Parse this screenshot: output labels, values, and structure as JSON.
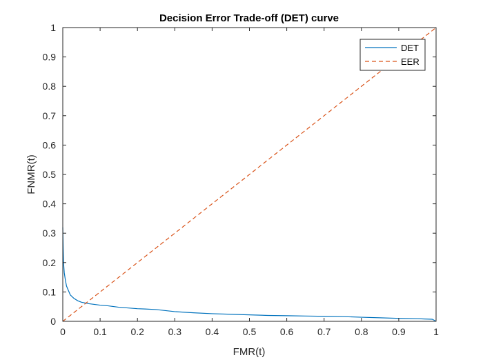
{
  "chart_data": {
    "type": "line",
    "title": "Decision Error Trade-off (DET) curve",
    "xlabel": "FMR(t)",
    "ylabel": "FNMR(t)",
    "xlim": [
      0,
      1
    ],
    "ylim": [
      0,
      1
    ],
    "xticks": [
      "0",
      "0.1",
      "0.2",
      "0.3",
      "0.4",
      "0.5",
      "0.6",
      "0.7",
      "0.8",
      "0.9",
      "1"
    ],
    "yticks": [
      "0",
      "0.1",
      "0.2",
      "0.3",
      "0.4",
      "0.5",
      "0.6",
      "0.7",
      "0.8",
      "0.9",
      "1"
    ],
    "grid": false,
    "legend_position": "top-right",
    "series": [
      {
        "name": "DET",
        "color": "#0072BD",
        "style": "solid",
        "x": [
          0,
          0.001,
          0.002,
          0.004,
          0.007,
          0.01,
          0.015,
          0.02,
          0.03,
          0.04,
          0.05,
          0.07,
          0.1,
          0.12,
          0.15,
          0.2,
          0.22,
          0.25,
          0.3,
          0.35,
          0.4,
          0.45,
          0.5,
          0.55,
          0.6,
          0.65,
          0.7,
          0.75,
          0.8,
          0.85,
          0.9,
          0.95,
          0.97,
          0.99,
          1.0
        ],
        "y": [
          0.32,
          0.25,
          0.2,
          0.165,
          0.14,
          0.12,
          0.105,
          0.09,
          0.078,
          0.07,
          0.065,
          0.06,
          0.055,
          0.053,
          0.048,
          0.043,
          0.042,
          0.04,
          0.033,
          0.029,
          0.026,
          0.024,
          0.022,
          0.02,
          0.019,
          0.018,
          0.017,
          0.016,
          0.014,
          0.012,
          0.01,
          0.009,
          0.008,
          0.007,
          0.0
        ]
      },
      {
        "name": "EER",
        "color": "#D95319",
        "style": "dashed",
        "x": [
          0,
          1
        ],
        "y": [
          0,
          1
        ]
      }
    ]
  }
}
